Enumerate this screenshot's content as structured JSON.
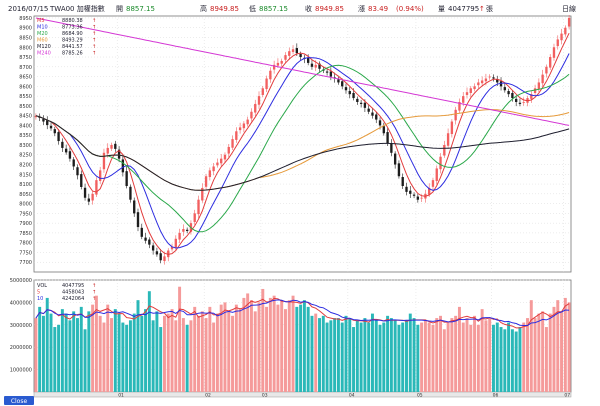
{
  "header": {
    "date": "2016/07/15",
    "symbol": "TWA00 加權指數",
    "open_label": "開",
    "open": "8857.15",
    "high_label": "高",
    "high": "8949.85",
    "low_label": "低",
    "low": "8857.15",
    "close_label": "收",
    "close": "8949.85",
    "change_label": "漲",
    "change": "83.49",
    "change_pct": "(0.94%)",
    "volume_label": "量",
    "volume": "4047795",
    "volume_unit": "張",
    "period": "日線"
  },
  "ma_legend": [
    {
      "label": "M5",
      "value": "8880.38",
      "color": "#e23c3c"
    },
    {
      "label": "M10",
      "value": "8773.36",
      "color": "#2d2de0"
    },
    {
      "label": "M20",
      "value": "8684.90",
      "color": "#2aa84a"
    },
    {
      "label": "M60",
      "value": "8493.29",
      "color": "#e69a3a"
    },
    {
      "label": "M120",
      "value": "8441.57",
      "color": "#1e1e2e"
    },
    {
      "label": "M240",
      "value": "8785.26",
      "color": "#d438d4"
    }
  ],
  "vol_legend": [
    {
      "label": "VOL",
      "value": "4047795",
      "color": "#1e1e2e"
    },
    {
      "label": "5",
      "value": "4458043",
      "color": "#e23c3c"
    },
    {
      "label": "10",
      "value": "4242064",
      "color": "#2d2de0"
    }
  ],
  "arrow": "↑",
  "footer_button": "Close",
  "colors": {
    "up": "#f25f5f",
    "down": "#1fb3b3",
    "up_vol": "#f59a9a",
    "down_vol": "#2ab8b8"
  },
  "chart_data": {
    "type": "candlestick",
    "price_axis": {
      "min": 7650,
      "max": 8960,
      "ticks": [
        7700,
        7750,
        7800,
        7850,
        7900,
        7950,
        8000,
        8050,
        8100,
        8150,
        8200,
        8250,
        8300,
        8350,
        8400,
        8450,
        8500,
        8550,
        8600,
        8650,
        8700,
        8750,
        8800,
        8850,
        8900,
        8950
      ]
    },
    "volume_axis": {
      "min": 0,
      "max": 5000000,
      "ticks": [
        {
          "v": 1000000,
          "label": "1000000"
        },
        {
          "v": 2000000,
          "label": "2000000"
        },
        {
          "v": 3000000,
          "label": "3000000"
        },
        {
          "v": 4000000,
          "label": "4000000"
        },
        {
          "v": 5000000,
          "label": "5000000"
        }
      ]
    },
    "months": [
      {
        "label": "01",
        "index": 22
      },
      {
        "label": "02",
        "index": 45
      },
      {
        "label": "03",
        "index": 60
      },
      {
        "label": "04",
        "index": 83
      },
      {
        "label": "05",
        "index": 101
      },
      {
        "label": "06",
        "index": 121
      },
      {
        "label": "07",
        "index": 140
      }
    ],
    "close": [
      8450,
      8438,
      8420,
      8402,
      8385,
      8360,
      8320,
      8285,
      8262,
      8230,
      8190,
      8145,
      8085,
      8030,
      8010,
      8050,
      8120,
      8170,
      8260,
      8285,
      8300,
      8280,
      8230,
      8160,
      8090,
      8020,
      7950,
      7880,
      7830,
      7810,
      7790,
      7760,
      7740,
      7710,
      7730,
      7760,
      7780,
      7820,
      7850,
      7870,
      7860,
      7900,
      7950,
      8020,
      8080,
      8140,
      8170,
      8190,
      8210,
      8230,
      8250,
      8290,
      8330,
      8370,
      8390,
      8410,
      8430,
      8470,
      8510,
      8550,
      8590,
      8640,
      8680,
      8710,
      8720,
      8730,
      8760,
      8780,
      8790,
      8770,
      8750,
      8740,
      8720,
      8700,
      8710,
      8690,
      8680,
      8670,
      8650,
      8640,
      8620,
      8600,
      8580,
      8560,
      8540,
      8520,
      8510,
      8490,
      8470,
      8450,
      8430,
      8400,
      8360,
      8310,
      8260,
      8200,
      8140,
      8090,
      8060,
      8050,
      8040,
      8020,
      8030,
      8050,
      8080,
      8120,
      8180,
      8240,
      8300,
      8360,
      8420,
      8480,
      8520,
      8550,
      8570,
      8590,
      8600,
      8620,
      8630,
      8640,
      8650,
      8640,
      8620,
      8600,
      8580,
      8560,
      8540,
      8520,
      8510,
      8520,
      8540,
      8560,
      8590,
      8620,
      8660,
      8700,
      8750,
      8800,
      8840,
      8870,
      8900,
      8950
    ],
    "volume": [
      3300000,
      3800000,
      3400000,
      4200000,
      3500000,
      2900000,
      3000000,
      3700000,
      3500000,
      3200000,
      3600000,
      3300000,
      3800000,
      2800000,
      3600000,
      3900000,
      4300000,
      3400000,
      3100000,
      3900000,
      3300000,
      3700000,
      3500000,
      3100000,
      3000000,
      3200000,
      3500000,
      4100000,
      3400000,
      3700000,
      4500000,
      3200000,
      3600000,
      2900000,
      3400000,
      3500000,
      3700000,
      3200000,
      4700000,
      3300000,
      3000000,
      3200000,
      3800000,
      3400000,
      3600000,
      3300000,
      3800000,
      3100000,
      3500000,
      3900000,
      4000000,
      3600000,
      3400000,
      3900000,
      3700000,
      4200000,
      4400000,
      4100000,
      3600000,
      4000000,
      4600000,
      3800000,
      4200000,
      4300000,
      3900000,
      4100000,
      3700000,
      4100000,
      4300000,
      3800000,
      3900000,
      4100000,
      3800000,
      3400000,
      3500000,
      3300000,
      3400000,
      3100000,
      3200000,
      3300000,
      3300000,
      3100000,
      3400000,
      3300000,
      2900000,
      3200000,
      3100000,
      3300000,
      3100000,
      3500000,
      3200000,
      3000000,
      3100000,
      3400000,
      3300000,
      3200000,
      3000000,
      3100000,
      3200000,
      3500000,
      3300000,
      3000000,
      3100000,
      3200000,
      3100000,
      3000000,
      3300000,
      3400000,
      2800000,
      3100000,
      3300000,
      3400000,
      3800000,
      3100000,
      3300000,
      3000000,
      3400000,
      3000000,
      3700000,
      3200000,
      3300000,
      3000000,
      3100000,
      2900000,
      2800000,
      3100000,
      2800000,
      2700000,
      2900000,
      3100000,
      3300000,
      4100000,
      3300000,
      3500000,
      3600000,
      2900000,
      3500000,
      3800000,
      4100000,
      3600000,
      4200000,
      4000000
    ]
  }
}
